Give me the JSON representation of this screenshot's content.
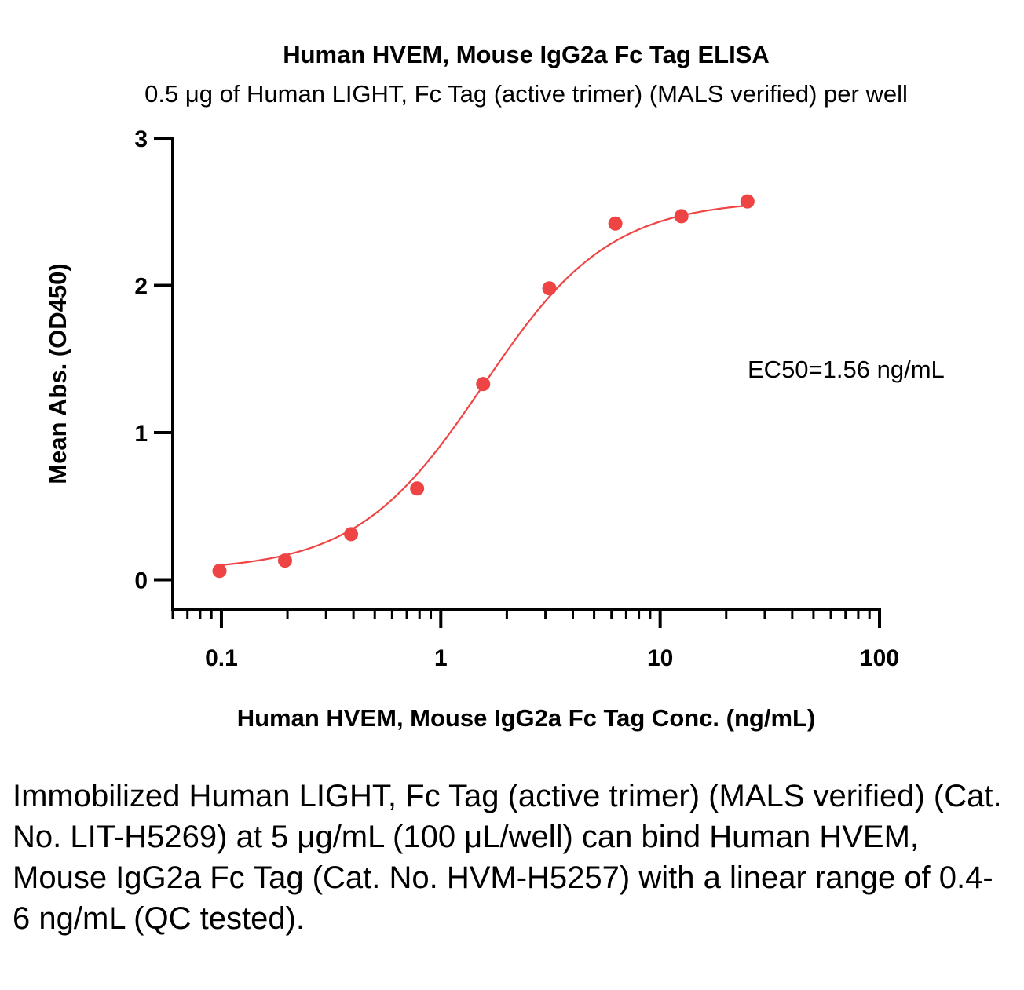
{
  "chart_data": {
    "type": "scatter",
    "title": "Human HVEM, Mouse IgG2a Fc Tag ELISA",
    "subtitle": "0.5 μg of Human LIGHT, Fc Tag (active trimer) (MALS verified) per well",
    "xlabel": "Human HVEM, Mouse IgG2a Fc Tag Conc. (ng/mL)",
    "ylabel": "Mean Abs. (OD450)",
    "x_scale": "log",
    "xlim": [
      0.06,
      100
    ],
    "ylim": [
      -0.2,
      3
    ],
    "x_ticks": [
      {
        "value": 0.1,
        "label": "0.1"
      },
      {
        "value": 1,
        "label": "1"
      },
      {
        "value": 10,
        "label": "10"
      },
      {
        "value": 100,
        "label": "100"
      }
    ],
    "y_ticks": [
      {
        "value": 0,
        "label": "0"
      },
      {
        "value": 1,
        "label": "1"
      },
      {
        "value": 2,
        "label": "2"
      },
      {
        "value": 3,
        "label": "3"
      }
    ],
    "grid": false,
    "series": [
      {
        "color": "#ef4444",
        "x": [
          0.098,
          0.195,
          0.39,
          0.78,
          1.56,
          3.125,
          6.25,
          12.5,
          25
        ],
        "y": [
          0.06,
          0.13,
          0.31,
          0.62,
          1.33,
          1.98,
          2.42,
          2.47,
          2.57
        ],
        "fit": {
          "model": "4PL",
          "bottom": 0.06,
          "top": 2.58,
          "ec50": 1.56,
          "hill": 1.5
        }
      }
    ],
    "annotations": [
      {
        "text": "EC50=1.56 ng/mL"
      }
    ]
  },
  "caption": "Immobilized Human LIGHT, Fc Tag (active trimer) (MALS verified) (Cat. No. LIT-H5269) at 5 μg/mL (100 μL/well) can bind Human HVEM, Mouse IgG2a Fc Tag (Cat. No. HVM-H5257) with a linear range of 0.4-6 ng/mL (QC tested)."
}
